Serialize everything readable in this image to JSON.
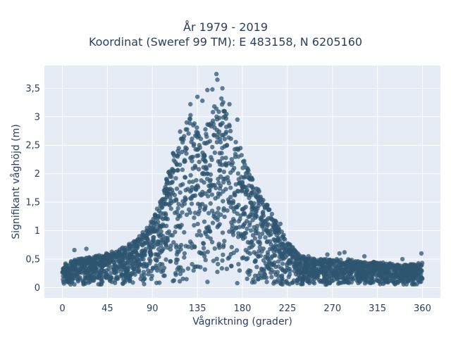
{
  "chart_data": {
    "type": "scatter",
    "title_lines": [
      "År 1979 - 2019",
      "Koordinat (Sweref 99 TM): E 483158, N 6205160"
    ],
    "xlabel": "Vågriktning (grader)",
    "ylabel": "Signifikant våghöjd (m)",
    "xlim": [
      -18,
      378
    ],
    "ylim": [
      -0.18,
      3.9
    ],
    "xticks": [
      0,
      45,
      90,
      135,
      180,
      225,
      270,
      315,
      360
    ],
    "xtick_labels": [
      "0",
      "45",
      "90",
      "135",
      "180",
      "225",
      "270",
      "315",
      "360"
    ],
    "yticks": [
      0,
      0.5,
      1,
      1.5,
      2,
      2.5,
      3,
      3.5
    ],
    "ytick_labels": [
      "0",
      "0,5",
      "1",
      "1,5",
      "2",
      "2,5",
      "3",
      "3,5"
    ],
    "grid": true,
    "marker_color": "#2f5570",
    "background_color": "#e5ecf6",
    "envelope": {
      "direction_deg": [
        0,
        15,
        30,
        45,
        60,
        75,
        90,
        100,
        110,
        120,
        130,
        140,
        150,
        160,
        170,
        180,
        190,
        200,
        210,
        225,
        240,
        255,
        270,
        285,
        300,
        315,
        330,
        345,
        360
      ],
      "max_height_m": [
        0.42,
        0.5,
        0.55,
        0.6,
        0.7,
        0.85,
        1.2,
        1.6,
        2.4,
        2.9,
        3.1,
        2.6,
        3.2,
        3.3,
        2.8,
        2.3,
        1.9,
        1.6,
        1.3,
        0.8,
        0.55,
        0.5,
        0.5,
        0.5,
        0.45,
        0.45,
        0.42,
        0.4,
        0.45
      ]
    },
    "outliers": [
      {
        "x": 154,
        "y": 3.75
      },
      {
        "x": 155,
        "y": 3.65
      },
      {
        "x": 150,
        "y": 3.48
      },
      {
        "x": 160,
        "y": 3.5
      },
      {
        "x": 145,
        "y": 3.47
      },
      {
        "x": 159,
        "y": 3.32
      },
      {
        "x": 135,
        "y": 3.35
      },
      {
        "x": 140,
        "y": 3.28
      },
      {
        "x": 167,
        "y": 3.22
      },
      {
        "x": 128,
        "y": 3.22
      },
      {
        "x": 175,
        "y": 2.95
      },
      {
        "x": 100,
        "y": 1.55
      },
      {
        "x": 96,
        "y": 1.25
      },
      {
        "x": 205,
        "y": 1.45
      },
      {
        "x": 218,
        "y": 1.12
      },
      {
        "x": 230,
        "y": 0.62
      },
      {
        "x": 246,
        "y": 0.55
      },
      {
        "x": 265,
        "y": 0.58
      },
      {
        "x": 277,
        "y": 0.6
      },
      {
        "x": 282,
        "y": 0.62
      },
      {
        "x": 302,
        "y": 0.55
      },
      {
        "x": 340,
        "y": 0.5
      },
      {
        "x": 359,
        "y": 0.6
      },
      {
        "x": 24,
        "y": 0.68
      },
      {
        "x": 12,
        "y": 0.66
      },
      {
        "x": 44,
        "y": 0.6
      },
      {
        "x": 63,
        "y": 0.7
      },
      {
        "x": 77,
        "y": 0.9
      },
      {
        "x": 84,
        "y": 1.0
      },
      {
        "x": 178,
        "y": 2.45
      }
    ]
  }
}
